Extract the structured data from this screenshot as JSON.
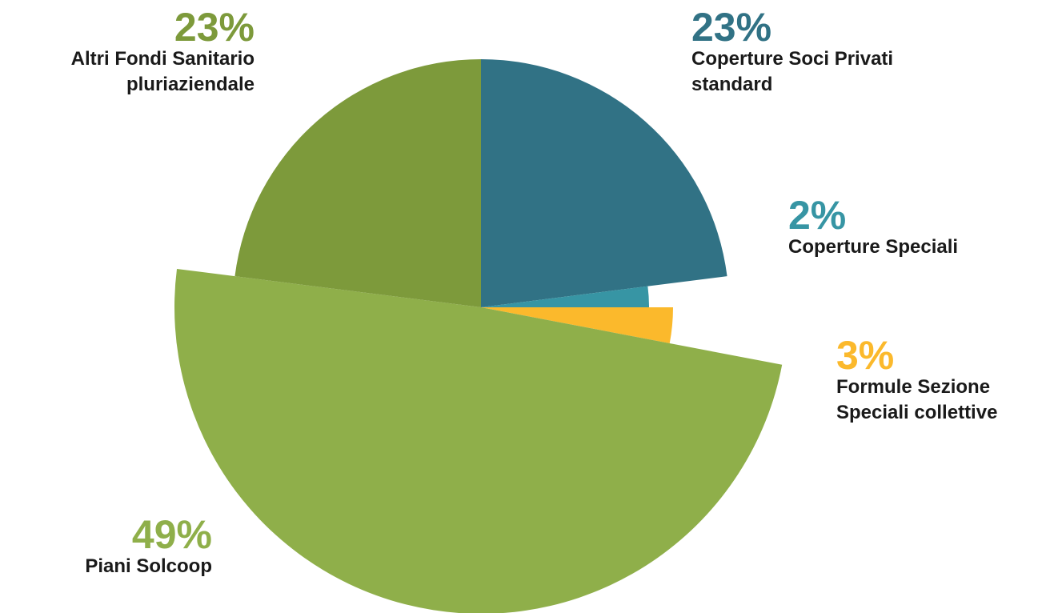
{
  "chart_data": {
    "type": "pie",
    "slices": [
      {
        "label_line1": "Coperture Soci Privati",
        "label_line2": "standard",
        "percent_label": "23%",
        "value": 23,
        "color": "#317285"
      },
      {
        "label_line1": "Coperture Speciali",
        "label_line2": "",
        "percent_label": "2%",
        "value": 2,
        "color": "#3795A4"
      },
      {
        "label_line1": "Formule Sezione",
        "label_line2": "Speciali collettive",
        "percent_label": "3%",
        "value": 3,
        "color": "#FBB92C"
      },
      {
        "label_line1": "Piani Solcoop",
        "label_line2": "",
        "percent_label": "49%",
        "value": 49,
        "color": "#8FAF4A"
      },
      {
        "label_line1": "Altri Fondi Sanitario",
        "label_line2": "pluriaziendale",
        "percent_label": "23%",
        "value": 23,
        "color": "#7D9A3B"
      }
    ]
  }
}
